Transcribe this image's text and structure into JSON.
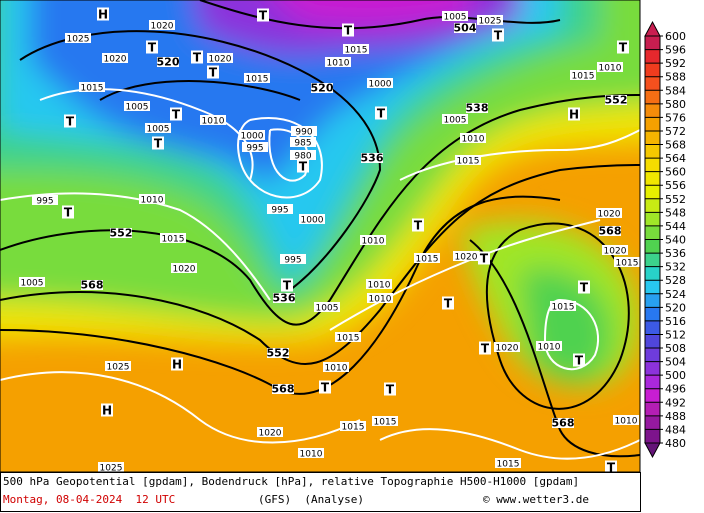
{
  "map": {
    "map_labels": [
      "H",
      "T",
      "T",
      "1020",
      "1025",
      "T",
      "1015",
      "504",
      "T",
      "1005",
      "1025",
      "1020",
      "520",
      "T",
      "1020",
      "T",
      "1010",
      "1015",
      "520",
      "1015",
      "1005",
      "T",
      "1010",
      "T",
      "1005",
      "T",
      "1000",
      "995",
      "990",
      "985",
      "980",
      "T",
      "536",
      "1000",
      "T",
      "538",
      "1005",
      "1010",
      "1015",
      "552",
      "H",
      "1015",
      "1010",
      "T",
      "995",
      "T",
      "1010",
      "995",
      "1000",
      "552",
      "1015",
      "1010",
      "T",
      "1015",
      "T",
      "1020",
      "568",
      "1020",
      "1020",
      "1015",
      "1020",
      "568",
      "1005",
      "995",
      "T",
      "536",
      "1005",
      "1010",
      "1010",
      "T",
      "1015",
      "T",
      "1010",
      "T",
      "T",
      "1020",
      "1015",
      "552",
      "1025",
      "H",
      "1010",
      "568",
      "T",
      "T",
      "1015",
      "1015",
      "H",
      "1020",
      "1010",
      "568",
      "1010",
      "1025",
      "1015",
      "T"
    ],
    "colorbar": {
      "ticks": [
        600,
        596,
        592,
        588,
        584,
        580,
        576,
        572,
        568,
        564,
        560,
        556,
        552,
        548,
        544,
        540,
        536,
        532,
        528,
        524,
        520,
        516,
        512,
        508,
        504,
        500,
        496,
        492,
        488,
        484,
        480
      ],
      "colors": [
        "#c81e50",
        "#e6282d",
        "#f03c1e",
        "#f5501e",
        "#f56e14",
        "#f58c0a",
        "#f5a000",
        "#f5b400",
        "#f5c800",
        "#f5dc00",
        "#f0e600",
        "#e6f000",
        "#c8eb14",
        "#a0e628",
        "#78dc3c",
        "#50d250",
        "#3cd28c",
        "#28d2c8",
        "#28c8f0",
        "#28a0f0",
        "#2878f0",
        "#3c5ae6",
        "#5046dc",
        "#6e3cdc",
        "#8c32dc",
        "#aa28dc",
        "#c81ed2",
        "#b41eb4",
        "#9619a0",
        "#7d148c",
        "#641478"
      ]
    },
    "footer": {
      "description": "500 hPa Geopotential [gpdam], Bodendruck [hPa], relative Topographie H500-H1000 [gpdam]",
      "date": "Montag, 08-04-2024  12 UTC",
      "model": "(GFS)  (Analyse)",
      "copyright": "© www.wetter3.de"
    }
  }
}
